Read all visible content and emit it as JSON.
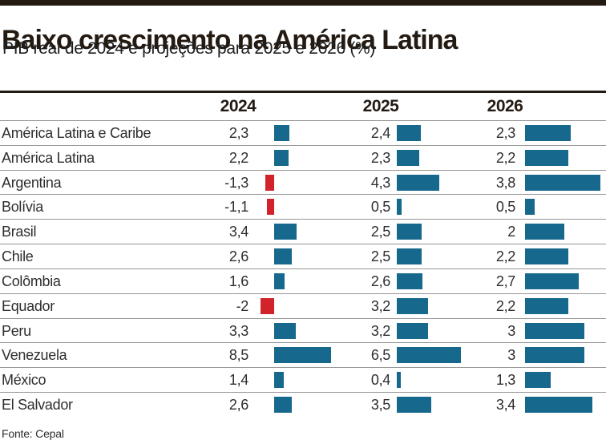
{
  "header": {
    "title": "Baixo crescimento na América Latina",
    "subtitle": "PIB real de 2024 e projeções para 2025 e 2026 (%)"
  },
  "source": "Fonte: Cepal",
  "colors": {
    "accent_dark": "#231a12",
    "positive_bar": "#16698c",
    "negative_bar": "#d2232a",
    "row_line": "#969696",
    "text": "#2e2e2e"
  },
  "chart_data": {
    "type": "bar",
    "orientation": "horizontal",
    "title": "Baixo crescimento na América Latina",
    "subtitle": "PIB real de 2024 e projeções para 2025 e 2026 (%)",
    "unit": "%",
    "columns": [
      "2024",
      "2025",
      "2026"
    ],
    "categories": [
      "América Latina e Caribe",
      "América Latina",
      "Argentina",
      "Bolívia",
      "Brasil",
      "Chile",
      "Colômbia",
      "Equador",
      "Peru",
      "Venezuela",
      "México",
      "El Salvador"
    ],
    "rows": [
      {
        "country": "América Latina e Caribe",
        "labels": [
          "2,3",
          "2,4",
          "2,3"
        ],
        "values": [
          2.3,
          2.4,
          2.3
        ]
      },
      {
        "country": "América Latina",
        "labels": [
          "2,2",
          "2,3",
          "2,2"
        ],
        "values": [
          2.2,
          2.3,
          2.2
        ]
      },
      {
        "country": "Argentina",
        "labels": [
          "-1,3",
          "4,3",
          "3,8"
        ],
        "values": [
          -1.3,
          4.3,
          3.8
        ]
      },
      {
        "country": "Bolívia",
        "labels": [
          "-1,1",
          "0,5",
          "0,5"
        ],
        "values": [
          -1.1,
          0.5,
          0.5
        ]
      },
      {
        "country": "Brasil",
        "labels": [
          "3,4",
          "2,5",
          "2"
        ],
        "values": [
          3.4,
          2.5,
          2
        ]
      },
      {
        "country": "Chile",
        "labels": [
          "2,6",
          "2,5",
          "2,2"
        ],
        "values": [
          2.6,
          2.5,
          2.2
        ]
      },
      {
        "country": "Colômbia",
        "labels": [
          "1,6",
          "2,6",
          "2,7"
        ],
        "values": [
          1.6,
          2.6,
          2.7
        ]
      },
      {
        "country": "Equador",
        "labels": [
          "-2",
          "3,2",
          "2,2"
        ],
        "values": [
          -2,
          3.2,
          2.2
        ]
      },
      {
        "country": "Peru",
        "labels": [
          "3,3",
          "3,2",
          "3"
        ],
        "values": [
          3.3,
          3.2,
          3
        ]
      },
      {
        "country": "Venezuela",
        "labels": [
          "8,5",
          "6,5",
          "3"
        ],
        "values": [
          8.5,
          6.5,
          3
        ]
      },
      {
        "country": "México",
        "labels": [
          "1,4",
          "0,4",
          "1,3"
        ],
        "values": [
          1.4,
          0.4,
          1.3
        ]
      },
      {
        "country": "El Salvador",
        "labels": [
          "2,6",
          "3,5",
          "3,4"
        ],
        "values": [
          2.6,
          3.5,
          3.4
        ]
      }
    ],
    "bar_color_positive": "#16698c",
    "bar_color_negative": "#d2232a",
    "legend_position": "none",
    "grid": "row-separators-only"
  }
}
